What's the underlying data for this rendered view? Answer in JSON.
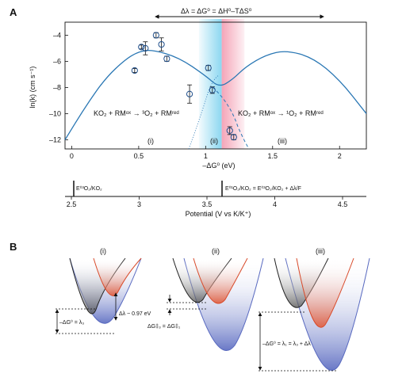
{
  "panel_a": {
    "label": "A",
    "top_annotation": "Δλ = ΔG⁰ = ΔH⁰–TΔS⁰",
    "y_axis_label": "ln(k) (cm s⁻¹)",
    "x_axis_label": "–ΔG⁰ (eV)",
    "region_labels": [
      "(i)",
      "(ii)",
      "(iii)"
    ],
    "reaction_left": "KO₂ + RMᵒˣ → ³O₂ + RMʳᵉᵈ",
    "reaction_right": "KO₂ + RMᵒˣ → ¹O₂ + RMʳᵉᵈ",
    "x_ticks": [
      "0",
      "0.5",
      "1",
      "1.5",
      "2"
    ],
    "y_ticks": [
      "–4",
      "–6",
      "–8",
      "–10",
      "–12"
    ],
    "potential_ticks": [
      "2.5",
      "3",
      "3.5",
      "4",
      "4.5"
    ],
    "potential_axis_label": "Potential (V vs K/K⁺)",
    "potential_marker_1": "E⁰³O₂/KO₂",
    "potential_marker_2": "E⁰¹O₂/KO₂ = E⁰³O₂/KO₂ + Δλ/F"
  },
  "panel_b": {
    "label": "B",
    "sub_labels": [
      "(i)",
      "(ii)",
      "(iii)"
    ],
    "annot_dl": "Δλ ~ 0.97 eV",
    "annot_i": "–ΔG⁰ = λ₃",
    "annot_ii": "ΔG‡₃ = ΔG‡₁",
    "annot_iii": "–ΔG⁰ = λ₁ = λ₃ + Δλ"
  },
  "chart_data": {
    "type": "scatter",
    "title": "",
    "xlabel": "–ΔG⁰ (eV)",
    "ylabel": "ln(k) (cm s⁻¹)",
    "xlim": [
      -0.05,
      2.2
    ],
    "ylim": [
      -12.7,
      -3.0
    ],
    "x": [
      0.47,
      0.52,
      0.55,
      0.63,
      0.67,
      0.71,
      0.88,
      1.02,
      1.05,
      1.18,
      1.21
    ],
    "y": [
      -6.7,
      -4.9,
      -5.0,
      -4.0,
      -4.7,
      -5.8,
      -8.5,
      -6.5,
      -8.2,
      -11.3,
      -11.8
    ],
    "errors": [
      0.15,
      0.15,
      0.5,
      0.2,
      0.5,
      0.2,
      0.7,
      0.2,
      0.25,
      0.3,
      0.2
    ],
    "curve_x": [
      -0.05,
      0.1,
      0.25,
      0.4,
      0.5,
      0.6,
      0.8,
      1.0,
      1.1,
      1.2,
      1.3,
      1.45,
      1.6,
      1.8,
      2.0,
      2.2
    ],
    "curve_y": [
      -12.0,
      -9.5,
      -7.3,
      -5.85,
      -5.25,
      -5.1,
      -5.7,
      -7.1,
      -8.0,
      -7.4,
      -6.4,
      -5.5,
      -5.15,
      -5.7,
      -7.4,
      -10.0
    ],
    "shaded_regions": [
      {
        "from": 0.95,
        "to": 1.12,
        "color": "#7fd3ef"
      },
      {
        "from": 1.12,
        "to": 1.29,
        "color": "#f4a0b4"
      }
    ]
  }
}
